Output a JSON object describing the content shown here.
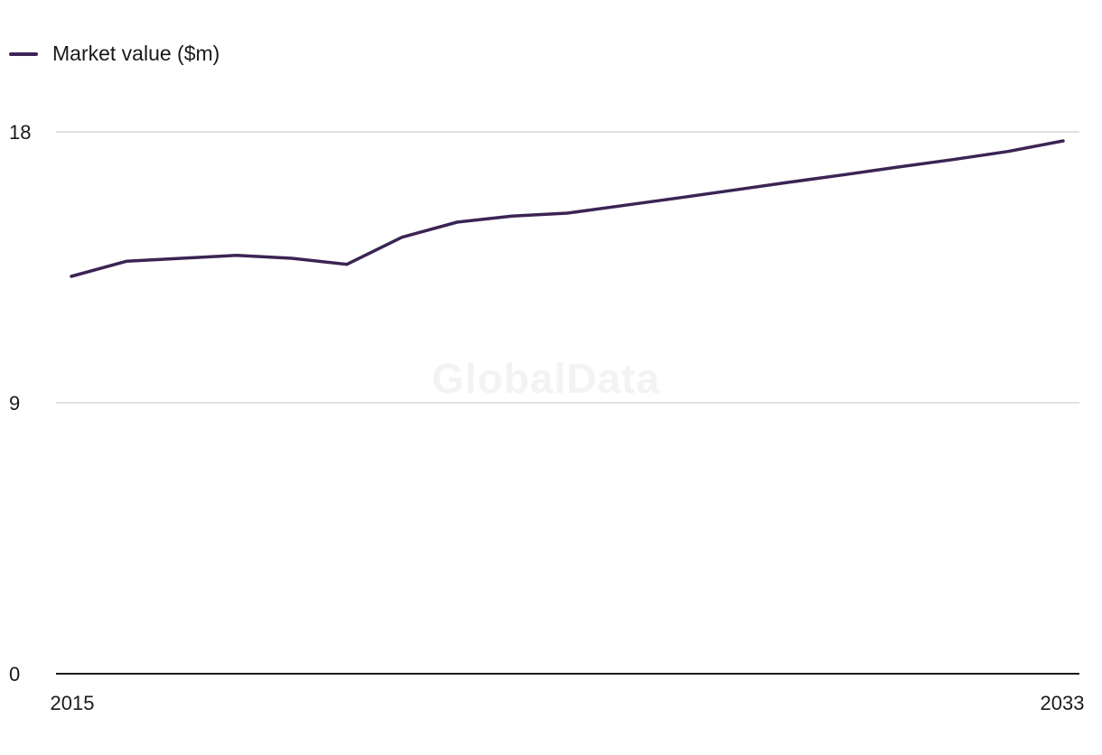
{
  "chart_data": {
    "type": "line",
    "x": [
      2015,
      2016,
      2017,
      2018,
      2019,
      2020,
      2021,
      2022,
      2023,
      2024,
      2025,
      2026,
      2027,
      2028,
      2029,
      2030,
      2031,
      2032,
      2033
    ],
    "series": [
      {
        "name": "Market value ($m)",
        "values": [
          13.2,
          13.7,
          13.8,
          13.9,
          13.8,
          13.6,
          14.5,
          15.0,
          15.2,
          15.3,
          15.55,
          15.8,
          16.06,
          16.32,
          16.57,
          16.83,
          17.08,
          17.35,
          17.7
        ],
        "color": "#3b2454"
      }
    ],
    "ylim": [
      0,
      18
    ],
    "yticks": [
      "0",
      "9",
      "18"
    ],
    "xtick_labels": [
      "2015",
      "2033"
    ],
    "grid": true,
    "legend": "top-left"
  },
  "watermark": "GlobalData"
}
